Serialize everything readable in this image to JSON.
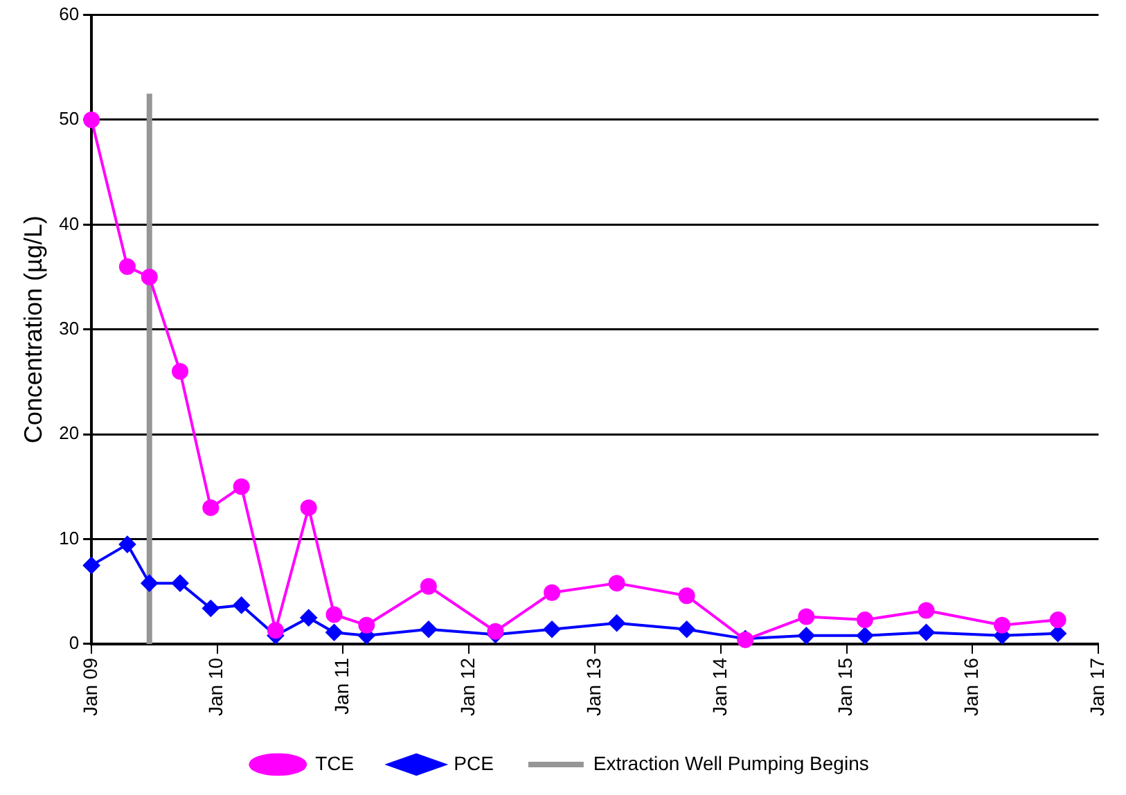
{
  "chart_data": {
    "type": "line",
    "ylabel": "Concentration (µg/L)",
    "xlim": [
      "2009-01-01",
      "2017-01-01"
    ],
    "xticks": [
      {
        "value": "2009-01-01",
        "label": "Jan 09"
      },
      {
        "value": "2010-01-01",
        "label": "Jan 10"
      },
      {
        "value": "2011-01-01",
        "label": "Jan 11"
      },
      {
        "value": "2012-01-01",
        "label": "Jan 12"
      },
      {
        "value": "2013-01-01",
        "label": "Jan 13"
      },
      {
        "value": "2014-01-01",
        "label": "Jan 14"
      },
      {
        "value": "2015-01-01",
        "label": "Jan 15"
      },
      {
        "value": "2016-01-01",
        "label": "Jan 16"
      },
      {
        "value": "2017-01-01",
        "label": "Jan 17"
      }
    ],
    "ylim": [
      0,
      60
    ],
    "yticks": [
      0,
      10,
      20,
      30,
      40,
      50,
      60
    ],
    "grid": "y",
    "legend": "bottom",
    "series": [
      {
        "name": "Extraction Well Pumping Begins",
        "color": "#969696",
        "marker": "none",
        "x": [
          "2009-06-18",
          "2009-06-18"
        ],
        "values": [
          0,
          52.5
        ]
      },
      {
        "name": "PCE",
        "color": "#0000ff",
        "marker": "diamond",
        "x": [
          "2009-01-01",
          "2009-04-15",
          "2009-06-18",
          "2009-09-15",
          "2009-12-13",
          "2010-03-12",
          "2010-06-19",
          "2010-09-23",
          "2010-12-06",
          "2011-03-10",
          "2011-09-06",
          "2012-03-18",
          "2012-08-29",
          "2013-03-05",
          "2013-09-24",
          "2014-03-13",
          "2014-09-06",
          "2015-02-23",
          "2015-08-20",
          "2016-03-27",
          "2016-09-05"
        ],
        "values": [
          7.5,
          9.5,
          5.8,
          5.8,
          3.4,
          3.7,
          0.8,
          2.5,
          1.1,
          0.8,
          1.4,
          0.9,
          1.4,
          2.0,
          1.4,
          0.5,
          0.8,
          0.8,
          1.1,
          0.8,
          1.0
        ]
      },
      {
        "name": "TCE",
        "color": "#ff00ff",
        "marker": "circle",
        "x": [
          "2009-01-01",
          "2009-04-15",
          "2009-06-18",
          "2009-09-15",
          "2009-12-13",
          "2010-03-12",
          "2010-06-19",
          "2010-09-23",
          "2010-12-06",
          "2011-03-10",
          "2011-09-06",
          "2012-03-18",
          "2012-08-29",
          "2013-03-05",
          "2013-09-24",
          "2014-03-13",
          "2014-09-06",
          "2015-02-23",
          "2015-08-20",
          "2016-03-27",
          "2016-09-05"
        ],
        "values": [
          50,
          36,
          35,
          26,
          13,
          15,
          1.3,
          13,
          2.8,
          1.8,
          5.5,
          1.2,
          4.9,
          5.8,
          4.6,
          0.4,
          2.6,
          2.3,
          3.2,
          1.8,
          2.3
        ]
      }
    ]
  }
}
